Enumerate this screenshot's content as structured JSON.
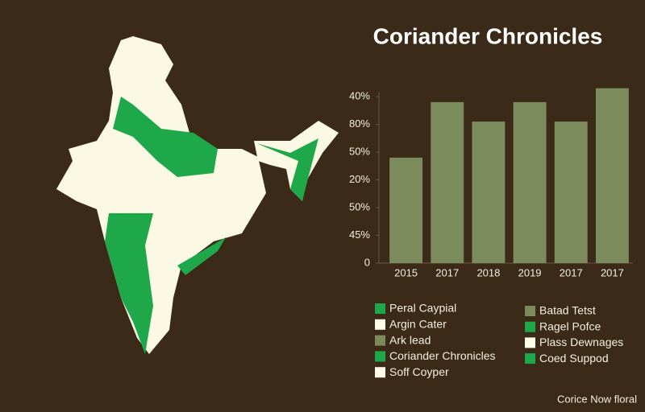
{
  "chart_data": {
    "type": "bar",
    "title": "Coriander Chronicles",
    "categories": [
      "2015",
      "2017",
      "2018",
      "2019",
      "2017",
      "2017"
    ],
    "values": [
      3.8,
      5.8,
      5.1,
      5.8,
      5.1,
      6.3
    ],
    "color": "#7b8b5c",
    "ylim": [
      0,
      6.4
    ],
    "yticks": [
      0,
      {
        "value": 1,
        "label": "45%"
      },
      {
        "value": 2,
        "label": "50%"
      },
      {
        "value": 3,
        "label": "20%"
      },
      {
        "value": 4,
        "label": "50%"
      },
      {
        "value": 5,
        "label": "80%"
      },
      {
        "value": 6,
        "label": "40%"
      }
    ],
    "grid": false
  },
  "legend": {
    "left": [
      {
        "name": "Peral Caypial",
        "color": "#1fa84a"
      },
      {
        "name": "Argin Cater",
        "color": "#fffbe6"
      },
      {
        "name": "Ark lead",
        "color": "#7b8b5c"
      },
      {
        "name": "Coriander Chronicles",
        "color": "#1fa84a"
      },
      {
        "name": "Soff Coyper",
        "color": "#fffbe6"
      }
    ],
    "right": [
      {
        "name": "Batad Tetst",
        "color": "#7b8b5c"
      },
      {
        "name": "Ragel Pofce",
        "color": "#1fa84a"
      },
      {
        "name": "Plass Dewnages",
        "color": "#fffbe6"
      },
      {
        "name": "Coed Suppod",
        "color": "#1fa84a"
      }
    ]
  },
  "footer": "Corice Now floral"
}
